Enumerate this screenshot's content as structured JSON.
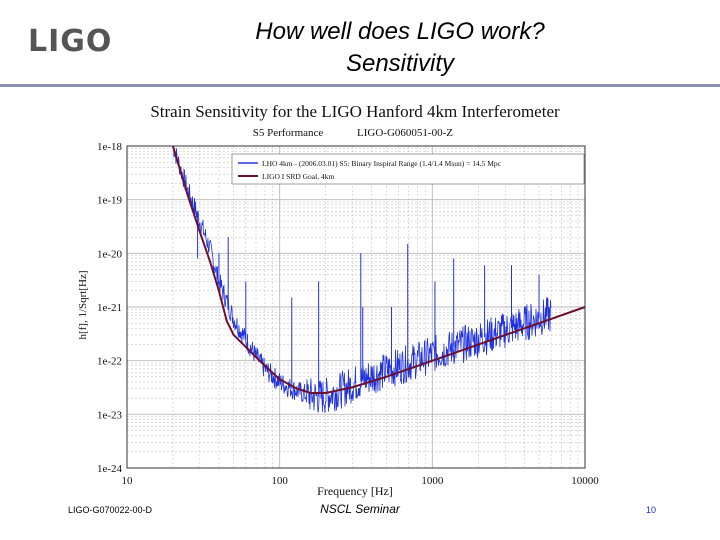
{
  "slide": {
    "logo": "LIGO",
    "title_line1": "How well does LIGO work?",
    "title_line2": "Sensitivity",
    "footer_left": "LIGO-G070022-00-D",
    "footer_center": "NSCL Seminar",
    "page_number": "10"
  },
  "colors": {
    "measured": "#2233dd",
    "goal": "#6b1030",
    "grid": "#b8b8b8",
    "rule": "#8a8fb0"
  },
  "chart_data": {
    "type": "line",
    "title": "Strain Sensitivity for the LIGO Hanford 4km Interferometer",
    "subtitle_left": "S5 Performance",
    "subtitle_right": "LIGO-G060051-00-Z",
    "xlabel": "Frequency [Hz]",
    "ylabel": "h[f], 1/Sqrt[Hz]",
    "x_scale": "log",
    "y_scale": "log",
    "xlim": [
      10,
      10000
    ],
    "ylim": [
      1e-24,
      1e-18
    ],
    "x_ticks": [
      10,
      100,
      1000,
      10000
    ],
    "x_tick_labels": [
      "10",
      "100",
      "1000",
      "10000"
    ],
    "y_ticks": [
      1e-18,
      1e-19,
      1e-20,
      1e-21,
      1e-22,
      1e-23,
      1e-24
    ],
    "y_tick_labels": [
      "1e-18",
      "1e-19",
      "1e-20",
      "1e-21",
      "1e-22",
      "1e-23",
      "1e-24"
    ],
    "grid": true,
    "legend_position": "top-right",
    "series": [
      {
        "name": "LHO 4km - (2006.03.01) S5: Binary Inspiral Range (1.4/1.4 Msun) = 14.5 Mpc",
        "color": "#2233dd",
        "noise_band": true,
        "x": [
          20,
          25,
          30,
          35,
          40,
          50,
          60,
          70,
          80,
          100,
          120,
          150,
          180,
          200,
          250,
          300,
          400,
          500,
          700,
          1000,
          1500,
          2000,
          3000,
          4000,
          5000,
          6000
        ],
        "y": [
          1e-18,
          1.5e-19,
          4e-20,
          1.2e-20,
          3e-21,
          6e-22,
          2.5e-22,
          1.2e-22,
          7e-23,
          4e-23,
          3e-23,
          2.3e-23,
          2.1e-23,
          2.2e-23,
          2.8e-23,
          3.6e-23,
          5.2e-23,
          6.5e-23,
          9e-23,
          1.3e-22,
          1.9e-22,
          2.5e-22,
          3.7e-22,
          5e-22,
          6.2e-22,
          7.3e-22
        ],
        "peaks": [
          {
            "x": 29,
            "y": 8e-21
          },
          {
            "x": 40,
            "y": 1e-20
          },
          {
            "x": 46,
            "y": 2e-20
          },
          {
            "x": 60,
            "y": 3e-21
          },
          {
            "x": 120,
            "y": 1.5e-21
          },
          {
            "x": 180,
            "y": 3e-21
          },
          {
            "x": 340,
            "y": 1e-20
          },
          {
            "x": 350,
            "y": 1e-21
          },
          {
            "x": 540,
            "y": 1e-21
          },
          {
            "x": 690,
            "y": 1.5e-20
          },
          {
            "x": 1040,
            "y": 3e-21
          },
          {
            "x": 1380,
            "y": 8e-21
          },
          {
            "x": 2200,
            "y": 6e-21
          },
          {
            "x": 3300,
            "y": 6e-21
          },
          {
            "x": 5000,
            "y": 4e-21
          }
        ]
      },
      {
        "name": "LIGO I SRD Goal, 4km",
        "color": "#6b1030",
        "x": [
          20,
          25,
          30,
          35,
          40,
          45,
          50,
          60,
          80,
          100,
          130,
          160,
          200,
          300,
          500,
          1000,
          2000,
          5000,
          10000
        ],
        "y": [
          1e-18,
          1.2e-19,
          2.5e-20,
          7e-21,
          2e-21,
          5.5e-22,
          3e-22,
          1.8e-22,
          8e-23,
          4.5e-23,
          3e-23,
          2.5e-23,
          2.5e-23,
          3.2e-23,
          5e-23,
          1e-22,
          2e-22,
          5e-22,
          1e-21
        ]
      }
    ]
  }
}
